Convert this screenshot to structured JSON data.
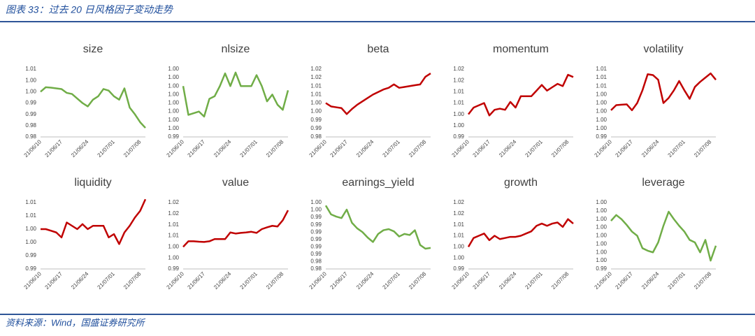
{
  "header": {
    "title": "图表 33：过去 20 日风格因子变动走势"
  },
  "footer": {
    "source": "资料来源：Wind，国盛证券研究所"
  },
  "chart_data": [
    {
      "type": "line",
      "title": "size",
      "color": "#70ad47",
      "categories": [
        "21/06/10",
        null,
        null,
        null,
        "21/06/17",
        null,
        null,
        null,
        null,
        "21/06/24",
        null,
        null,
        null,
        null,
        "21/07/01",
        null,
        null,
        null,
        null,
        "21/07/08",
        null
      ],
      "values": [
        1.0,
        1.002,
        1.0018,
        1.0015,
        1.0012,
        0.9995,
        0.999,
        0.997,
        0.995,
        0.9935,
        0.9965,
        0.998,
        1.0012,
        1.0005,
        0.998,
        0.9965,
        1.0015,
        0.993,
        0.99,
        0.9865,
        0.984
      ],
      "ylim": [
        0.98,
        1.01
      ],
      "yticks": [
        {
          "value": 0.98,
          "label": "0.98"
        },
        {
          "value": 0.985,
          "label": "0.98"
        },
        {
          "value": 0.99,
          "label": "0.99"
        },
        {
          "value": 0.995,
          "label": "0.99"
        },
        {
          "value": 1.0,
          "label": "1.00"
        },
        {
          "value": 1.005,
          "label": "1.00"
        },
        {
          "value": 1.01,
          "label": "1.01"
        }
      ]
    },
    {
      "type": "line",
      "title": "nlsize",
      "color": "#70ad47",
      "categories": [
        "21/06/10",
        null,
        null,
        null,
        "21/06/17",
        null,
        null,
        null,
        null,
        "21/06/24",
        null,
        null,
        null,
        null,
        "21/07/01",
        null,
        null,
        null,
        null,
        "21/07/08",
        null
      ],
      "values": [
        1.0,
        0.9966,
        0.9968,
        0.997,
        0.9964,
        0.9985,
        0.9988,
        1.0,
        1.0015,
        1.0,
        1.0016,
        1.0,
        1.0,
        1.0,
        1.0013,
        1.0,
        0.9982,
        0.999,
        0.9978,
        0.9972,
        0.9995
      ],
      "ylim": [
        0.994,
        1.002
      ],
      "yticks": [
        {
          "value": 0.994,
          "label": "0.99"
        },
        {
          "value": 0.995,
          "label": "1.00"
        },
        {
          "value": 0.996,
          "label": "1.00"
        },
        {
          "value": 0.997,
          "label": "1.00"
        },
        {
          "value": 0.998,
          "label": "1.00"
        },
        {
          "value": 0.999,
          "label": "1.00"
        },
        {
          "value": 1.0,
          "label": "1.00"
        },
        {
          "value": 1.001,
          "label": "1.00"
        },
        {
          "value": 1.002,
          "label": "1.00"
        }
      ]
    },
    {
      "type": "line",
      "title": "beta",
      "color": "#c00000",
      "categories": [
        "21/06/10",
        null,
        null,
        null,
        "21/06/17",
        null,
        null,
        null,
        null,
        "21/06/24",
        null,
        null,
        null,
        null,
        "21/07/01",
        null,
        null,
        null,
        null,
        "21/07/08",
        null
      ],
      "values": [
        1.0,
        0.998,
        0.9975,
        0.997,
        0.9935,
        0.9965,
        0.999,
        1.001,
        1.003,
        1.005,
        1.0065,
        1.008,
        1.009,
        1.011,
        1.009,
        1.0095,
        1.01,
        1.0105,
        1.011,
        1.0155,
        1.0175
      ],
      "ylim": [
        0.98,
        1.02
      ],
      "yticks": [
        {
          "value": 0.98,
          "label": "0.98"
        },
        {
          "value": 0.985,
          "label": "0.99"
        },
        {
          "value": 0.99,
          "label": "0.99"
        },
        {
          "value": 0.995,
          "label": "1.00"
        },
        {
          "value": 1.0,
          "label": "1.00"
        },
        {
          "value": 1.005,
          "label": "1.01"
        },
        {
          "value": 1.01,
          "label": "1.01"
        },
        {
          "value": 1.015,
          "label": "1.02"
        },
        {
          "value": 1.02,
          "label": "1.02"
        }
      ]
    },
    {
      "type": "line",
      "title": "momentum",
      "color": "#c00000",
      "categories": [
        "21/06/10",
        null,
        null,
        null,
        "21/06/17",
        null,
        null,
        null,
        null,
        "21/06/24",
        null,
        null,
        null,
        null,
        "21/07/01",
        null,
        null,
        null,
        null,
        "21/07/08",
        null
      ],
      "values": [
        1.0,
        1.003,
        1.004,
        1.005,
        0.9995,
        1.002,
        1.0025,
        1.002,
        1.0055,
        1.003,
        1.008,
        1.008,
        1.008,
        1.0105,
        1.013,
        1.0105,
        1.012,
        1.0135,
        1.0125,
        1.0175,
        1.0165
      ],
      "ylim": [
        0.99,
        1.02
      ],
      "yticks": [
        {
          "value": 0.99,
          "label": "0.99"
        },
        {
          "value": 0.995,
          "label": "1.00"
        },
        {
          "value": 1.0,
          "label": "1.00"
        },
        {
          "value": 1.005,
          "label": "1.01"
        },
        {
          "value": 1.01,
          "label": "1.01"
        },
        {
          "value": 1.015,
          "label": "1.02"
        },
        {
          "value": 1.02,
          "label": "1.02"
        }
      ]
    },
    {
      "type": "line",
      "title": "volatility",
      "color": "#c00000",
      "categories": [
        "21/06/10",
        null,
        null,
        null,
        "21/06/17",
        null,
        null,
        null,
        null,
        "21/06/24",
        null,
        null,
        null,
        null,
        "21/07/01",
        null,
        null,
        null,
        null,
        "21/07/08",
        null
      ],
      "values": [
        1.0003,
        1.0015,
        1.0016,
        1.0017,
        1.0003,
        1.002,
        1.005,
        1.0088,
        1.0086,
        1.0075,
        1.002,
        1.0032,
        1.005,
        1.0072,
        1.005,
        1.003,
        1.0058,
        1.007,
        1.008,
        1.009,
        1.0075
      ],
      "ylim": [
        0.994,
        1.01
      ],
      "yticks": [
        {
          "value": 0.994,
          "label": "0.99"
        },
        {
          "value": 0.996,
          "label": "1.00"
        },
        {
          "value": 0.998,
          "label": "1.00"
        },
        {
          "value": 1.0,
          "label": "1.00"
        },
        {
          "value": 1.002,
          "label": "1.00"
        },
        {
          "value": 1.004,
          "label": "1.00"
        },
        {
          "value": 1.006,
          "label": "1.01"
        },
        {
          "value": 1.008,
          "label": "1.01"
        },
        {
          "value": 1.01,
          "label": "1.01"
        }
      ]
    },
    {
      "type": "line",
      "title": "liquidity",
      "color": "#c00000",
      "categories": [
        "21/06/10",
        null,
        null,
        null,
        "21/06/17",
        null,
        null,
        null,
        null,
        "21/06/24",
        null,
        null,
        null,
        null,
        "21/07/01",
        null,
        null,
        null,
        null,
        "21/07/08",
        null
      ],
      "values": [
        1.002,
        1.002,
        1.0015,
        1.001,
        0.9995,
        1.004,
        1.003,
        1.002,
        1.0035,
        1.002,
        1.003,
        1.003,
        1.003,
        0.9995,
        1.0005,
        0.9975,
        1.001,
        1.003,
        1.0055,
        1.0075,
        1.011
      ],
      "ylim": [
        0.99,
        1.01
      ],
      "yticks": [
        {
          "value": 0.99,
          "label": "0.99"
        },
        {
          "value": 0.994,
          "label": "0.99"
        },
        {
          "value": 0.998,
          "label": "1.00"
        },
        {
          "value": 1.002,
          "label": "1.00"
        },
        {
          "value": 1.006,
          "label": "1.01"
        },
        {
          "value": 1.01,
          "label": "1.01"
        }
      ]
    },
    {
      "type": "line",
      "title": "value",
      "color": "#c00000",
      "categories": [
        "21/06/10",
        null,
        null,
        null,
        "21/06/17",
        null,
        null,
        null,
        null,
        "21/06/24",
        null,
        null,
        null,
        null,
        "21/07/01",
        null,
        null,
        null,
        null,
        "21/07/08",
        null
      ],
      "values": [
        1.0,
        1.0025,
        1.0025,
        1.0023,
        1.0022,
        1.0025,
        1.0035,
        1.0035,
        1.0035,
        1.0065,
        1.006,
        1.0063,
        1.0065,
        1.0068,
        1.0063,
        1.008,
        1.0088,
        1.0095,
        1.0092,
        1.012,
        1.0165
      ],
      "ylim": [
        0.99,
        1.02
      ],
      "yticks": [
        {
          "value": 0.99,
          "label": "0.99"
        },
        {
          "value": 0.995,
          "label": "1.00"
        },
        {
          "value": 1.0,
          "label": "1.00"
        },
        {
          "value": 1.005,
          "label": "1.01"
        },
        {
          "value": 1.01,
          "label": "1.01"
        },
        {
          "value": 1.015,
          "label": "1.02"
        },
        {
          "value": 1.02,
          "label": "1.02"
        }
      ]
    },
    {
      "type": "line",
      "title": "earnings_yield",
      "color": "#70ad47",
      "categories": [
        "21/06/10",
        null,
        null,
        null,
        "21/06/17",
        null,
        null,
        null,
        null,
        "21/06/24",
        null,
        null,
        null,
        null,
        "21/07/01",
        null,
        null,
        null,
        null,
        "21/07/08",
        null
      ],
      "values": [
        0.9992,
        0.9968,
        0.9962,
        0.9958,
        0.9981,
        0.9945,
        0.993,
        0.992,
        0.9905,
        0.9893,
        0.9915,
        0.9925,
        0.9928,
        0.9922,
        0.9908,
        0.9915,
        0.9912,
        0.9925,
        0.9885,
        0.9875,
        0.9877
      ],
      "ylim": [
        0.982,
        1.0
      ],
      "yticks": [
        {
          "value": 0.982,
          "label": "0.98"
        },
        {
          "value": 0.984,
          "label": "0.98"
        },
        {
          "value": 0.986,
          "label": "0.99"
        },
        {
          "value": 0.988,
          "label": "0.99"
        },
        {
          "value": 0.99,
          "label": "0.99"
        },
        {
          "value": 0.992,
          "label": "0.99"
        },
        {
          "value": 0.994,
          "label": "0.99"
        },
        {
          "value": 0.996,
          "label": "0.99"
        },
        {
          "value": 0.998,
          "label": "1.00"
        },
        {
          "value": 1.0,
          "label": "1.00"
        }
      ]
    },
    {
      "type": "line",
      "title": "growth",
      "color": "#c00000",
      "categories": [
        "21/06/10",
        null,
        null,
        null,
        "21/06/17",
        null,
        null,
        null,
        null,
        "21/06/24",
        null,
        null,
        null,
        null,
        "21/07/01",
        null,
        null,
        null,
        null,
        "21/07/08",
        null
      ],
      "values": [
        1.0,
        1.004,
        1.005,
        1.006,
        1.003,
        1.005,
        1.0035,
        1.004,
        1.0045,
        1.0045,
        1.005,
        1.006,
        1.007,
        1.0095,
        1.0105,
        1.0095,
        1.0105,
        1.011,
        1.009,
        1.0125,
        1.0105
      ],
      "ylim": [
        0.99,
        1.02
      ],
      "yticks": [
        {
          "value": 0.99,
          "label": "0.99"
        },
        {
          "value": 0.995,
          "label": "1.00"
        },
        {
          "value": 1.0,
          "label": "1.00"
        },
        {
          "value": 1.005,
          "label": "1.01"
        },
        {
          "value": 1.01,
          "label": "1.01"
        },
        {
          "value": 1.015,
          "label": "1.02"
        },
        {
          "value": 1.02,
          "label": "1.02"
        }
      ]
    },
    {
      "type": "line",
      "title": "leverage",
      "color": "#70ad47",
      "categories": [
        "21/06/10",
        null,
        null,
        null,
        "21/06/17",
        null,
        null,
        null,
        null,
        "21/06/24",
        null,
        null,
        null,
        null,
        "21/07/01",
        null,
        null,
        null,
        null,
        "21/07/08",
        null
      ],
      "values": [
        0.9998,
        1.0005,
        1.0,
        0.9993,
        0.9985,
        0.998,
        0.9965,
        0.9962,
        0.996,
        0.9972,
        0.9992,
        1.0009,
        1.0,
        0.9992,
        0.9985,
        0.9975,
        0.9972,
        0.996,
        0.9975,
        0.995,
        0.9968
      ],
      "ylim": [
        0.994,
        1.002
      ],
      "yticks": [
        {
          "value": 0.994,
          "label": "0.99"
        },
        {
          "value": 0.995,
          "label": "1.00"
        },
        {
          "value": 0.996,
          "label": "1.00"
        },
        {
          "value": 0.997,
          "label": "1.00"
        },
        {
          "value": 0.998,
          "label": "1.00"
        },
        {
          "value": 0.999,
          "label": "1.00"
        },
        {
          "value": 1.0,
          "label": "1.00"
        },
        {
          "value": 1.001,
          "label": "1.00"
        },
        {
          "value": 1.002,
          "label": "1.00"
        }
      ]
    }
  ]
}
